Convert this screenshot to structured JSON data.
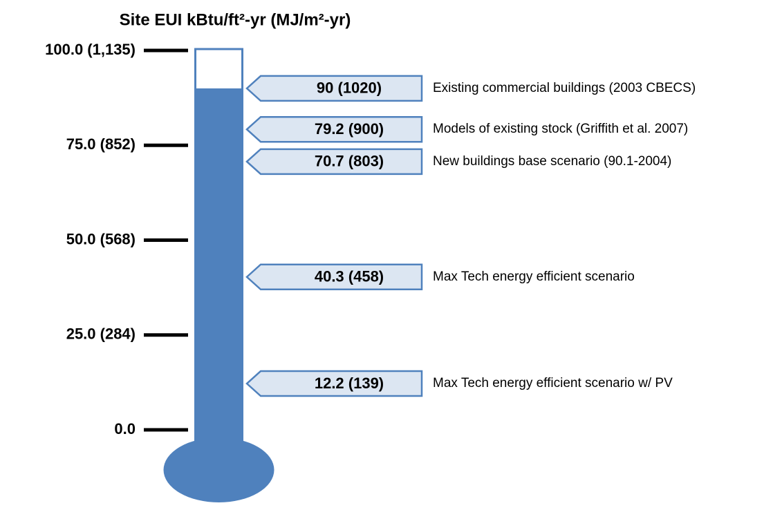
{
  "chart_data": {
    "type": "thermometer",
    "title": "Site EUI kBtu/ft²-yr (MJ/m²-yr)",
    "ylim": [
      0,
      100
    ],
    "yticks": [
      {
        "value": 0,
        "label": "0.0"
      },
      {
        "value": 25,
        "label": "25.0 (284)"
      },
      {
        "value": 50,
        "label": "50.0 (568)"
      },
      {
        "value": 75,
        "label": "75.0 (852)"
      },
      {
        "value": 100,
        "label": "100.0 (1,135)"
      }
    ],
    "categories": [
      "Existing commercial buildings (2003 CBECS)",
      "Models of existing stock (Griffith et al. 2007)",
      "New buildings base scenario (90.1-2004)",
      "Max Tech energy efficient scenario",
      "Max Tech energy efficient scenario w/ PV"
    ],
    "values": [
      90,
      79.2,
      70.7,
      40.3,
      12.2
    ],
    "value_labels": [
      "90 (1020)",
      "79.2 (900)",
      "70.7 (803)",
      "40.3 (458)",
      "12.2 (139)"
    ],
    "color": "#4f81bd",
    "box_color": "#dce6f2"
  }
}
